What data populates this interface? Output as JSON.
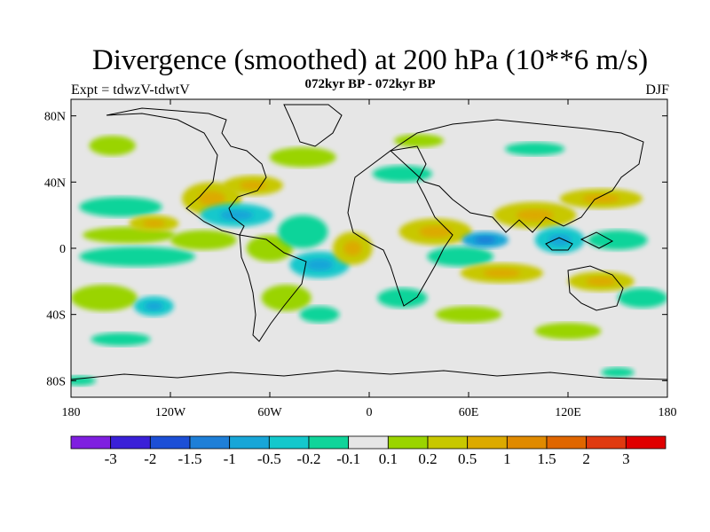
{
  "title": "Divergence (smoothed) at 200 hPa (10**6 m/s)",
  "subtitle": "072kyr BP - 072kyr BP",
  "left_label": "Expt = tdwzV-tdwtV",
  "right_label": "DJF",
  "axes": {
    "lon_range": [
      -180,
      180
    ],
    "lat_range": [
      -90,
      90
    ],
    "x_ticks": [
      {
        "value": -180,
        "label": "180"
      },
      {
        "value": -120,
        "label": "120W"
      },
      {
        "value": -60,
        "label": "60W"
      },
      {
        "value": 0,
        "label": "0"
      },
      {
        "value": 60,
        "label": "60E"
      },
      {
        "value": 120,
        "label": "120E"
      },
      {
        "value": 180,
        "label": "180"
      }
    ],
    "y_ticks": [
      {
        "value": 80,
        "label": "80N"
      },
      {
        "value": 40,
        "label": "40N"
      },
      {
        "value": 0,
        "label": "0"
      },
      {
        "value": -40,
        "label": "40S"
      },
      {
        "value": -80,
        "label": "80S"
      }
    ]
  },
  "colorbar": {
    "colors": [
      "#7f1fe0",
      "#3a20d8",
      "#1c4fd6",
      "#1e7fd8",
      "#18a6d8",
      "#14c8cc",
      "#10d49a",
      "#e6e6e6",
      "#9ad400",
      "#c8c800",
      "#dcaa00",
      "#e08a00",
      "#e06600",
      "#e03a10",
      "#e00000"
    ],
    "labels": [
      "-3",
      "-2",
      "-1.5",
      "-1",
      "-0.5",
      "-0.2",
      "-0.1",
      "0.1",
      "0.2",
      "0.5",
      "1",
      "1.5",
      "2",
      "3"
    ]
  },
  "neutral_color": "#e6e6e6",
  "anomalies": [
    {
      "lon": -155,
      "lat": 62,
      "rx": 14,
      "ry": 6,
      "lvl": 1
    },
    {
      "lon": -150,
      "lat": 25,
      "rx": 25,
      "ry": 6,
      "lvl": -1
    },
    {
      "lon": -145,
      "lat": 8,
      "rx": 28,
      "ry": 5,
      "lvl": 1
    },
    {
      "lon": -130,
      "lat": 15,
      "rx": 15,
      "ry": 5,
      "lvl": 2
    },
    {
      "lon": -140,
      "lat": -5,
      "rx": 35,
      "ry": 6,
      "lvl": -1
    },
    {
      "lon": -160,
      "lat": -30,
      "rx": 20,
      "ry": 8,
      "lvl": 1
    },
    {
      "lon": -130,
      "lat": -35,
      "rx": 12,
      "ry": 6,
      "lvl": -2
    },
    {
      "lon": -95,
      "lat": 30,
      "rx": 18,
      "ry": 10,
      "lvl": 2
    },
    {
      "lon": -80,
      "lat": 20,
      "rx": 22,
      "ry": 7,
      "lvl": -2
    },
    {
      "lon": -70,
      "lat": 38,
      "rx": 18,
      "ry": 6,
      "lvl": 2
    },
    {
      "lon": -100,
      "lat": 5,
      "rx": 20,
      "ry": 6,
      "lvl": 1
    },
    {
      "lon": -60,
      "lat": 0,
      "rx": 14,
      "ry": 8,
      "lvl": 1
    },
    {
      "lon": -40,
      "lat": 10,
      "rx": 15,
      "ry": 10,
      "lvl": -1
    },
    {
      "lon": -30,
      "lat": -10,
      "rx": 18,
      "ry": 8,
      "lvl": -2
    },
    {
      "lon": -10,
      "lat": 0,
      "rx": 12,
      "ry": 10,
      "lvl": 2
    },
    {
      "lon": -50,
      "lat": -30,
      "rx": 15,
      "ry": 8,
      "lvl": 1
    },
    {
      "lon": -30,
      "lat": -40,
      "rx": 12,
      "ry": 5,
      "lvl": -1
    },
    {
      "lon": -40,
      "lat": 55,
      "rx": 20,
      "ry": 6,
      "lvl": 1
    },
    {
      "lon": 20,
      "lat": 45,
      "rx": 18,
      "ry": 5,
      "lvl": -1
    },
    {
      "lon": 40,
      "lat": 10,
      "rx": 22,
      "ry": 8,
      "lvl": 2
    },
    {
      "lon": 55,
      "lat": -5,
      "rx": 20,
      "ry": 6,
      "lvl": -1
    },
    {
      "lon": 70,
      "lat": 5,
      "rx": 14,
      "ry": 5,
      "lvl": -3
    },
    {
      "lon": 80,
      "lat": -15,
      "rx": 25,
      "ry": 6,
      "lvl": 2
    },
    {
      "lon": 100,
      "lat": 20,
      "rx": 25,
      "ry": 8,
      "lvl": 2
    },
    {
      "lon": 115,
      "lat": 5,
      "rx": 15,
      "ry": 8,
      "lvl": -2
    },
    {
      "lon": 140,
      "lat": 30,
      "rx": 25,
      "ry": 6,
      "lvl": 2
    },
    {
      "lon": 150,
      "lat": 5,
      "rx": 18,
      "ry": 6,
      "lvl": -1
    },
    {
      "lon": 140,
      "lat": -20,
      "rx": 20,
      "ry": 6,
      "lvl": 2
    },
    {
      "lon": 165,
      "lat": -30,
      "rx": 15,
      "ry": 6,
      "lvl": -1
    },
    {
      "lon": 60,
      "lat": -40,
      "rx": 20,
      "ry": 5,
      "lvl": 1
    },
    {
      "lon": 20,
      "lat": -30,
      "rx": 15,
      "ry": 6,
      "lvl": -1
    },
    {
      "lon": 120,
      "lat": -50,
      "rx": 20,
      "ry": 5,
      "lvl": 1
    },
    {
      "lon": -150,
      "lat": -55,
      "rx": 18,
      "ry": 4,
      "lvl": -1
    },
    {
      "lon": 30,
      "lat": 65,
      "rx": 15,
      "ry": 4,
      "lvl": 1
    },
    {
      "lon": 100,
      "lat": 60,
      "rx": 18,
      "ry": 4,
      "lvl": -1
    },
    {
      "lon": -175,
      "lat": -80,
      "rx": 10,
      "ry": 3,
      "lvl": -1
    },
    {
      "lon": 150,
      "lat": -75,
      "rx": 10,
      "ry": 3,
      "lvl": -1
    }
  ]
}
